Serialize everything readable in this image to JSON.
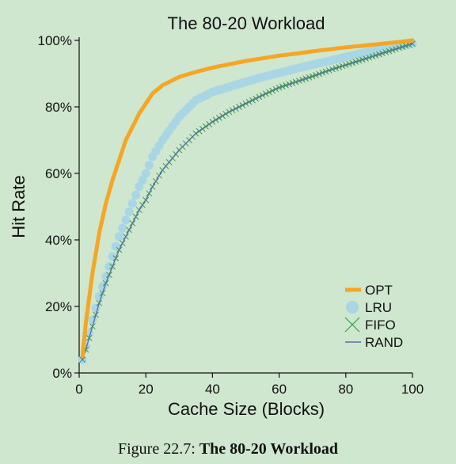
{
  "caption": {
    "prefix": "Figure 22.7:",
    "title": "The 80-20 Workload"
  },
  "chart_data": {
    "type": "line",
    "title": "The 80-20 Workload",
    "xlabel": "Cache Size (Blocks)",
    "ylabel": "Hit Rate",
    "xlim": [
      0,
      100
    ],
    "ylim": [
      0,
      100
    ],
    "xticks": [
      0,
      20,
      40,
      60,
      80,
      100
    ],
    "xtick_labels": [
      "0",
      "20",
      "40",
      "60",
      "80",
      "100"
    ],
    "yticks": [
      0,
      20,
      40,
      60,
      80,
      100
    ],
    "ytick_labels": [
      "0%",
      "20%",
      "40%",
      "60%",
      "80%",
      "100%"
    ],
    "grid": false,
    "legend_position": "lower-right",
    "colors": {
      "background": "#cfe6cf",
      "OPT": "#f5a623",
      "LRU": "#a9d6e5",
      "FIFO": "#3a9b4a",
      "RAND": "#5a6fa8"
    },
    "x": [
      1,
      2,
      4,
      6,
      8,
      10,
      12,
      14,
      16,
      18,
      20,
      22,
      25,
      30,
      35,
      40,
      45,
      50,
      55,
      60,
      65,
      70,
      75,
      80,
      85,
      90,
      95,
      100
    ],
    "series": [
      {
        "name": "OPT",
        "marker": "line",
        "values": [
          5,
          15,
          30,
          42,
          51,
          58,
          64,
          70,
          74,
          78,
          81,
          84,
          86.5,
          89,
          90.5,
          91.8,
          92.8,
          93.8,
          94.6,
          95.4,
          96,
          96.7,
          97.3,
          97.9,
          98.4,
          98.9,
          99.4,
          100
        ]
      },
      {
        "name": "LRU",
        "marker": "circle",
        "values": [
          4,
          8,
          16,
          23,
          29,
          35,
          41,
          46,
          51,
          56,
          60,
          65,
          70,
          77,
          82,
          84.5,
          86,
          87.5,
          89,
          90.2,
          91.5,
          92.7,
          93.8,
          95,
          96.2,
          97.3,
          98.3,
          99
        ]
      },
      {
        "name": "FIFO",
        "marker": "x",
        "values": [
          4,
          7,
          14,
          21,
          27,
          32,
          37,
          41,
          45,
          49,
          52,
          56,
          61,
          67,
          72,
          75.5,
          78.5,
          81,
          83.5,
          85.8,
          87.5,
          89.2,
          91,
          92.6,
          94.2,
          95.8,
          97.4,
          99
        ]
      },
      {
        "name": "RAND",
        "marker": "line",
        "values": [
          4,
          7,
          14,
          21,
          27,
          32,
          37,
          41,
          45,
          49,
          52,
          56,
          61,
          67,
          72,
          75.5,
          78.5,
          81,
          83.5,
          85.8,
          87.5,
          89.2,
          91,
          92.6,
          94.2,
          95.8,
          97.4,
          99
        ]
      }
    ]
  }
}
